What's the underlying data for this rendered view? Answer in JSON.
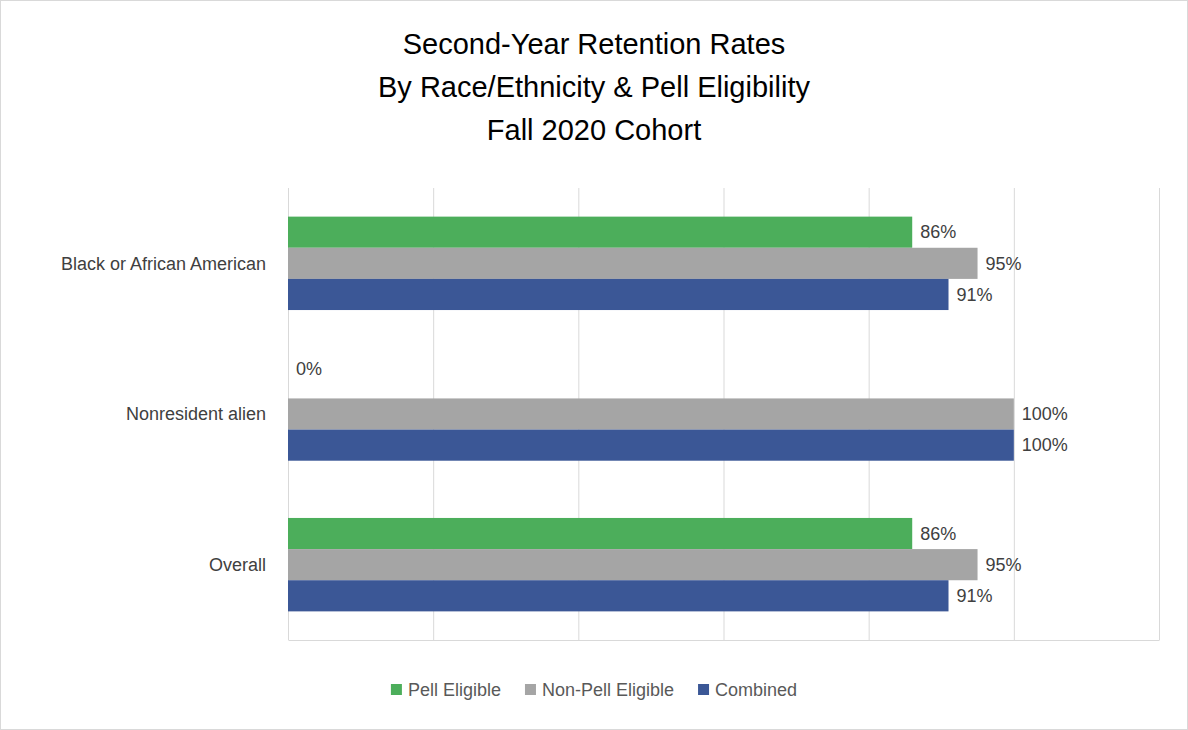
{
  "chart_data": {
    "type": "bar",
    "orientation": "horizontal",
    "title": "Second-Year Retention Rates\nBy Race/Ethnicity & Pell Eligibility\nFall 2020 Cohort",
    "categories": [
      "Black or African American",
      "Nonresident alien",
      "Overall"
    ],
    "series": [
      {
        "name": "Pell Eligible",
        "color": "#4cae5b",
        "values": [
          86,
          0,
          86
        ],
        "value_labels": [
          "86%",
          "0%",
          "86%"
        ]
      },
      {
        "name": "Non-Pell Eligible",
        "color": "#a5a5a5",
        "values": [
          95,
          100,
          95
        ],
        "value_labels": [
          "95%",
          "100%",
          "95%"
        ]
      },
      {
        "name": "Combined",
        "color": "#3b5796",
        "values": [
          91,
          100,
          91
        ],
        "value_labels": [
          "91%",
          "100%",
          "91%"
        ]
      }
    ],
    "xlim": [
      0,
      120
    ],
    "xticks": [
      0,
      20,
      40,
      60,
      80,
      100,
      120
    ],
    "grid": true,
    "tick_labels": false,
    "data_labels": true,
    "legend": "bottom"
  }
}
